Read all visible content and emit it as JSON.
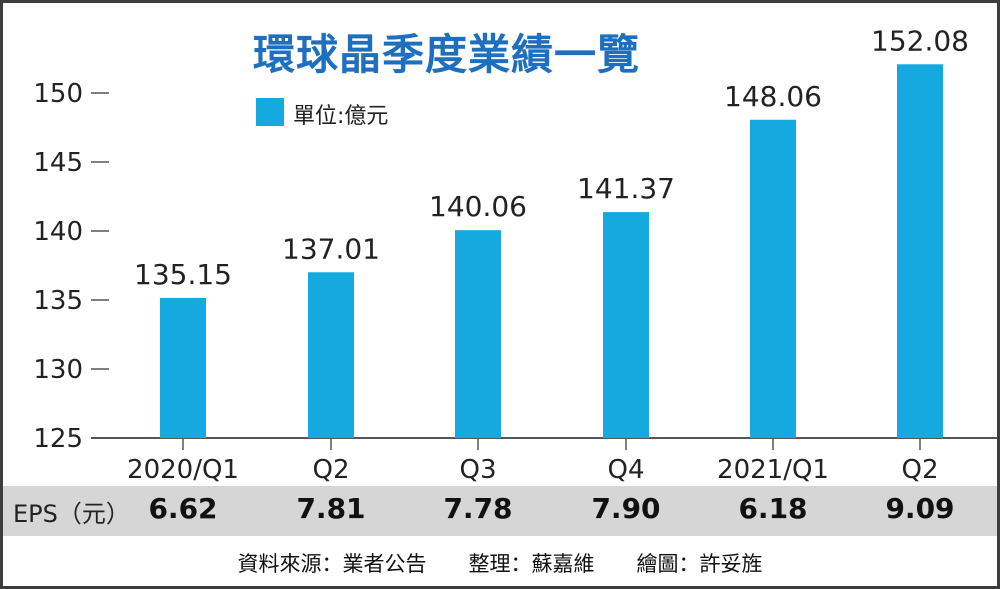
{
  "title": "環球晶季度業績一覽",
  "legend": {
    "label": "單位:億元",
    "color": "#15a9e0"
  },
  "chart_data": {
    "type": "bar",
    "categories": [
      "2020/Q1",
      "Q2",
      "Q3",
      "Q4",
      "2021/Q1",
      "Q2"
    ],
    "series": [
      {
        "values": [
          135.15,
          137.01,
          140.06,
          141.37,
          148.06,
          152.08
        ]
      }
    ],
    "value_labels": [
      "135.15",
      "137.01",
      "140.06",
      "141.37",
      "148.06",
      "152.08"
    ],
    "yticks": [
      125,
      130,
      135,
      140,
      145,
      150
    ],
    "ylim": [
      125,
      150
    ],
    "bar_color": "#15a9e0",
    "grid": false
  },
  "eps": {
    "label": "EPS（元）",
    "values": [
      "6.62",
      "7.81",
      "7.78",
      "7.90",
      "6.18",
      "9.09"
    ]
  },
  "source": "資料來源：業者公告　　整理：蘇嘉維　　繪圖：許妥旌"
}
